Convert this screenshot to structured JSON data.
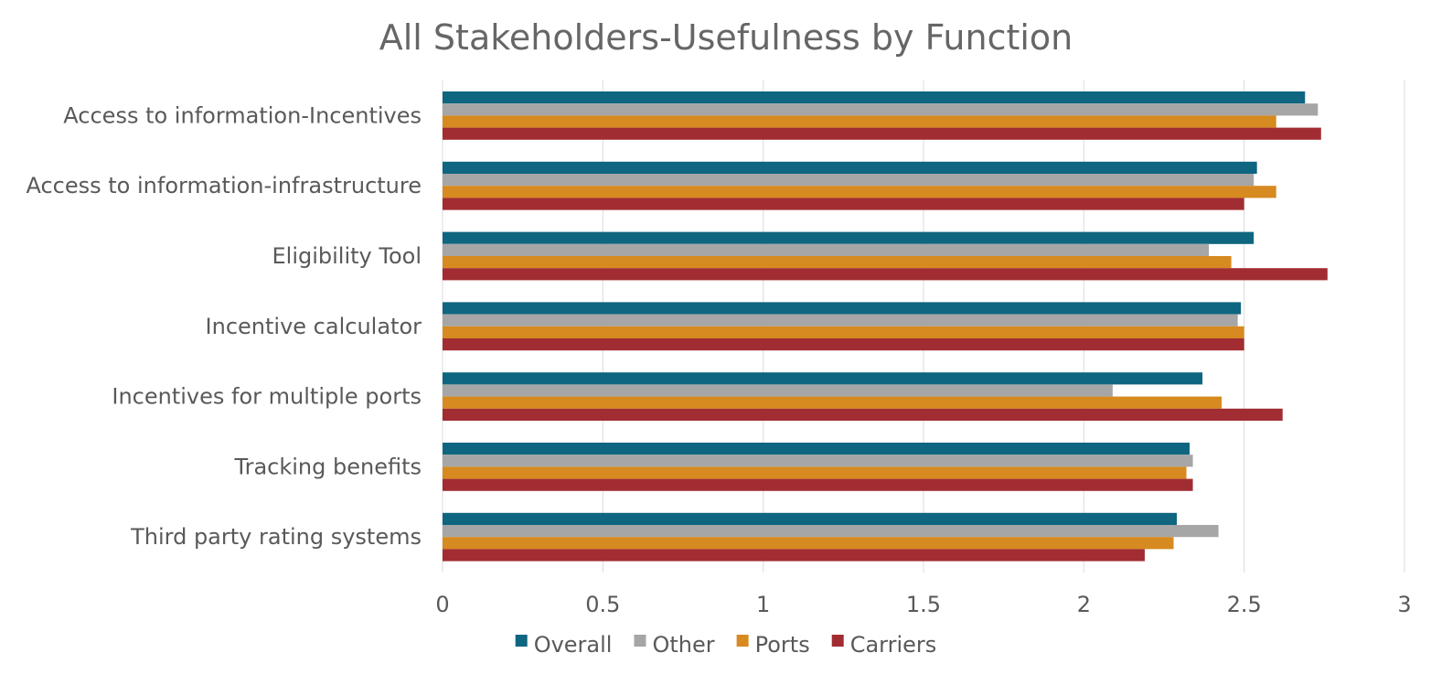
{
  "chart_data": {
    "type": "bar",
    "orientation": "horizontal",
    "title": "All Stakeholders-Usefulness by Function",
    "xlabel": "",
    "ylabel": "",
    "xlim": [
      0,
      3
    ],
    "x_ticks": [
      "0",
      "0.5",
      "1",
      "1.5",
      "2",
      "2.5",
      "3"
    ],
    "x_tick_values": [
      0,
      0.5,
      1,
      1.5,
      2,
      2.5,
      3
    ],
    "grid": "vertical",
    "legend_position": "bottom",
    "categories": [
      "Access to information-Incentives",
      "Access to information-infrastructure",
      "Eligibility Tool",
      "Incentive calculator",
      "Incentives for multiple ports",
      "Tracking benefits",
      "Third party rating systems"
    ],
    "series": [
      {
        "name": "Overall",
        "color": "#0e6680",
        "values": [
          2.69,
          2.54,
          2.53,
          2.49,
          2.37,
          2.33,
          2.29
        ]
      },
      {
        "name": "Other",
        "color": "#a6a6a6",
        "values": [
          2.73,
          2.53,
          2.39,
          2.48,
          2.09,
          2.34,
          2.42
        ]
      },
      {
        "name": "Ports",
        "color": "#d68a1f",
        "values": [
          2.6,
          2.6,
          2.46,
          2.5,
          2.43,
          2.32,
          2.28
        ]
      },
      {
        "name": "Carriers",
        "color": "#a12d32",
        "values": [
          2.74,
          2.5,
          2.76,
          2.5,
          2.62,
          2.34,
          2.19
        ]
      }
    ]
  }
}
